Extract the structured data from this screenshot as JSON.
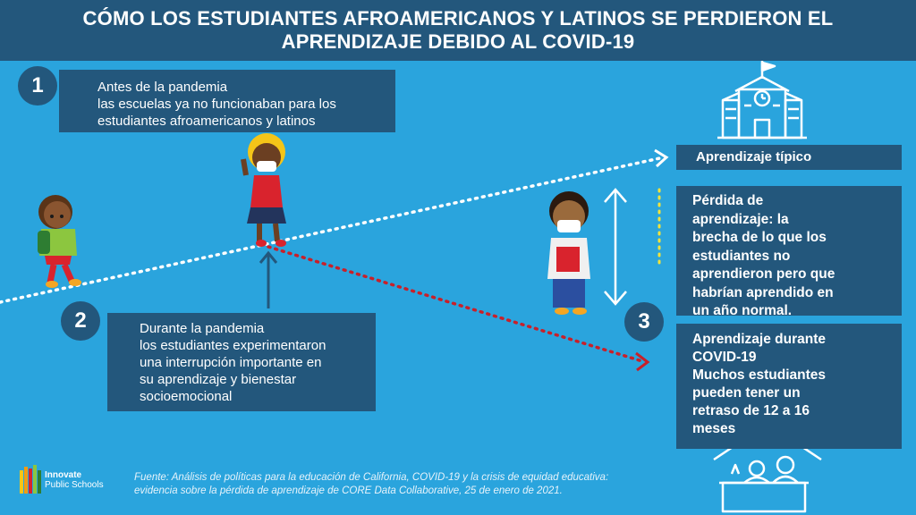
{
  "header": {
    "title_line1": "CÓMO LOS ESTUDIANTES AFROAMERICANOS Y LATINOS SE PERDIERON EL",
    "title_line2": "APRENDIZAJE DEBIDO AL COVID-19"
  },
  "step1": {
    "number": "1",
    "lines": [
      "Antes de la pandemia",
      "las escuelas ya no funcionaban para los",
      "estudiantes afroamericanos y latinos"
    ]
  },
  "step2": {
    "number": "2",
    "lines": [
      "Durante la pandemia",
      "los estudiantes experimentaron",
      "una interrupción importante en",
      "su aprendizaje y bienestar",
      "socioemocional"
    ]
  },
  "step3": {
    "number": "3",
    "lines": [
      "Aprendizaje durante",
      "COVID-19",
      "Muchos estudiantes",
      "pueden tener un",
      "retraso de 12 a 16",
      "meses"
    ]
  },
  "typical": {
    "label": "Aprendizaje típico"
  },
  "loss": {
    "lines": [
      "Pérdida de",
      "aprendizaje: la",
      "brecha de lo que los",
      "estudiantes no",
      "aprendieron pero que",
      "habrían aprendido en",
      "un año normal."
    ]
  },
  "source": {
    "line1": "Fuente: Análisis de políticas para la educación de California, COVID-19 y la crisis de equidad educativa:",
    "line2": "evidencia sobre la pérdida de aprendizaje de CORE Data Collaborative, 25 de enero de 2021."
  },
  "logo": {
    "line1": "Innovate",
    "line2": "Public Schools"
  },
  "colors": {
    "background": "#2aa4dd",
    "panel": "#23577c",
    "red_path": "#c8202a",
    "yellow_gap": "#f3e33a"
  }
}
